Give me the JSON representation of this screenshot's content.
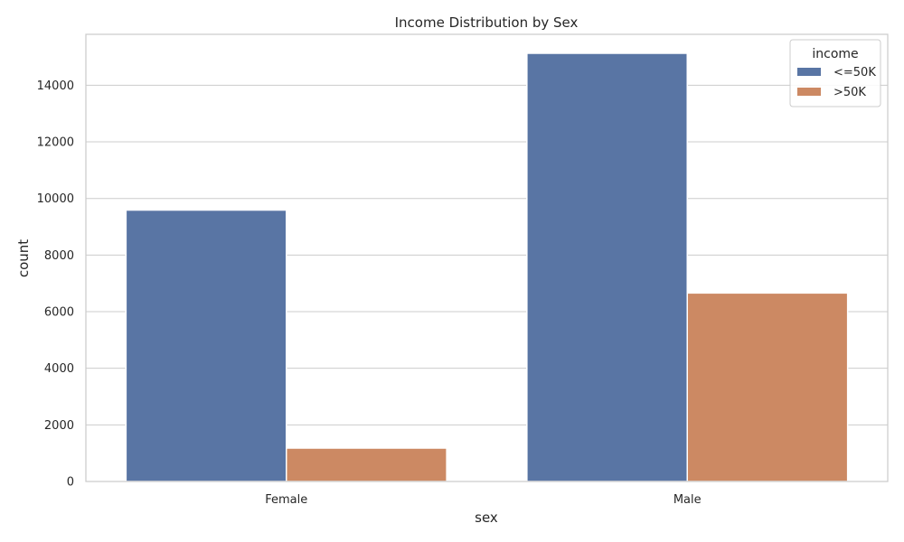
{
  "chart_data": {
    "type": "bar",
    "title": "Income Distribution by Sex",
    "xlabel": "sex",
    "ylabel": "count",
    "categories": [
      "Female",
      "Male"
    ],
    "series": [
      {
        "name": "<=50K",
        "values": [
          9590,
          15130
        ],
        "color": "#5975a4"
      },
      {
        "name": ">50K",
        "values": [
          1180,
          6660
        ],
        "color": "#cc8963"
      }
    ],
    "ylim": [
      0,
      15800
    ],
    "yticks": [
      0,
      2000,
      4000,
      6000,
      8000,
      10000,
      12000,
      14000
    ],
    "grid": true,
    "legend": {
      "title": "income",
      "placement": "top-right"
    }
  }
}
